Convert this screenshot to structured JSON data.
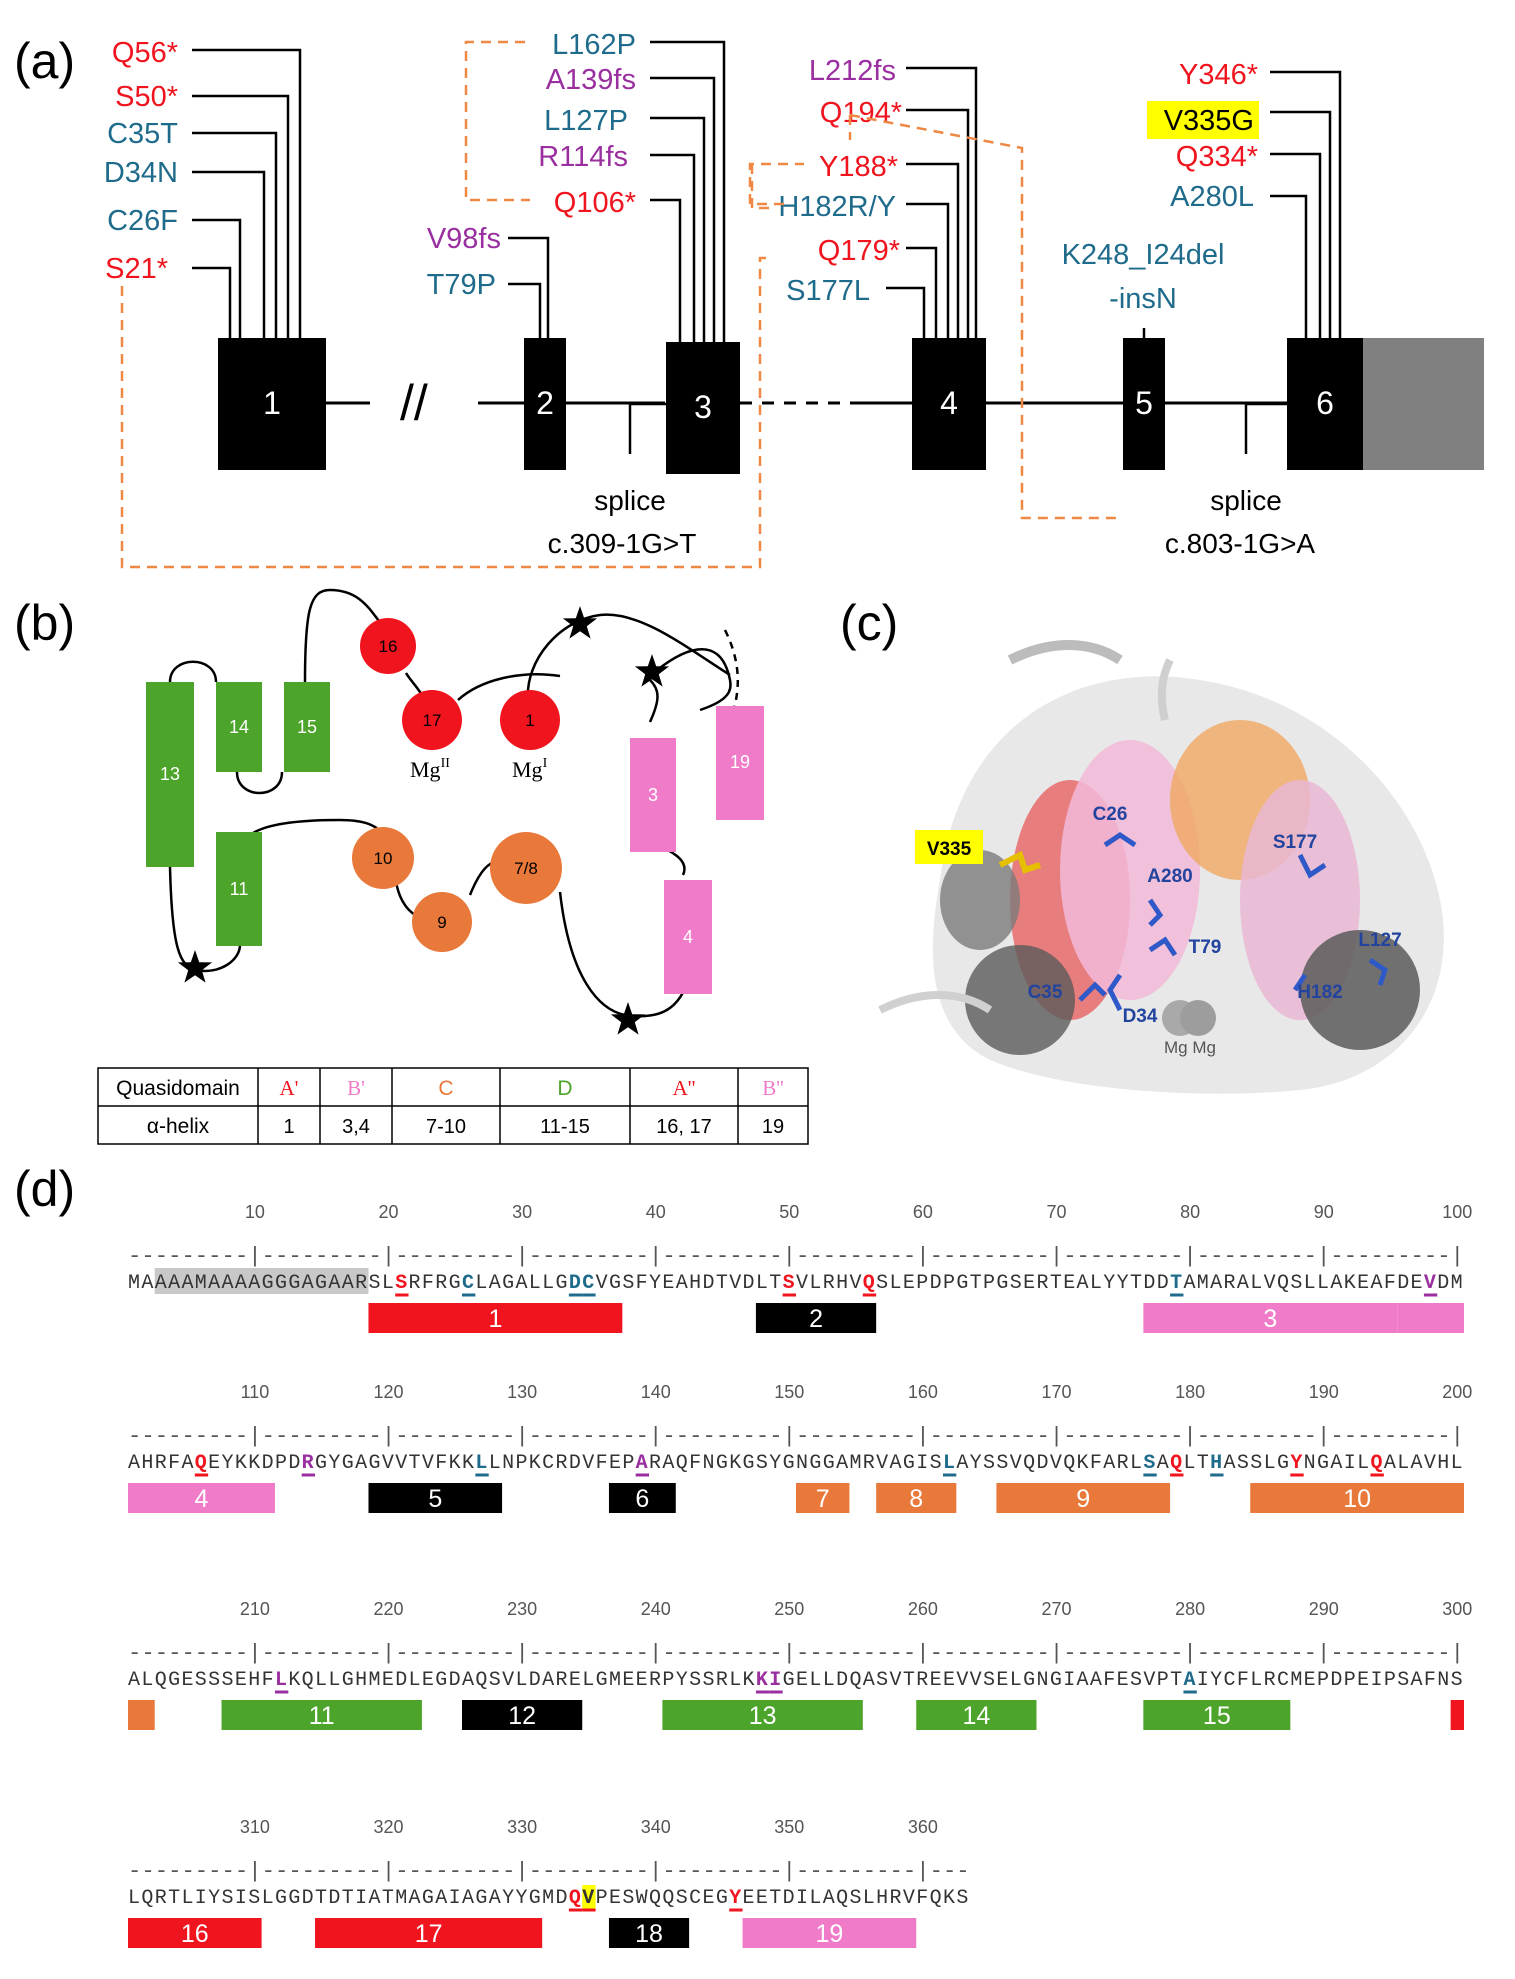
{
  "colors": {
    "red": "#f0141e",
    "teal": "#1f6b8c",
    "purple": "#9a2fa0",
    "black": "#000000",
    "orange_dash": "#ee8844",
    "green": "#4ca42a",
    "orange": "#e8793a",
    "pink": "#f07cc9",
    "gray": "#808080",
    "highlight": "#ffff00",
    "link_blue": "#1e73c8"
  },
  "panel_a": {
    "label": "(a)",
    "exons": [
      "1",
      "2",
      "3",
      "4",
      "5",
      "6"
    ],
    "break_mark": "//",
    "splice_left": {
      "line1": "splice",
      "line2": "c.309-1G>T"
    },
    "splice_right": {
      "line1": "splice",
      "line2": "c.803-1G>A"
    },
    "exon1_variants": [
      {
        "text": "Q56*",
        "color": "red"
      },
      {
        "text": "S50*",
        "color": "red"
      },
      {
        "text": "C35T",
        "color": "teal"
      },
      {
        "text": "D34N",
        "color": "teal"
      },
      {
        "text": "C26F",
        "color": "teal"
      },
      {
        "text": "S21*",
        "color": "red"
      }
    ],
    "exon2_variants": [
      {
        "text": "V98fs",
        "color": "purple"
      },
      {
        "text": "T79P",
        "color": "teal"
      }
    ],
    "exon3_variants": [
      {
        "text": "L162P",
        "color": "teal"
      },
      {
        "text": "A139fs",
        "color": "purple"
      },
      {
        "text": "L127P",
        "color": "teal"
      },
      {
        "text": "R114fs",
        "color": "purple"
      },
      {
        "text": "Q106*",
        "color": "red"
      }
    ],
    "exon4_variants": [
      {
        "text": "L212fs",
        "color": "purple"
      },
      {
        "text": "Q194*",
        "color": "red"
      },
      {
        "text": "Y188*",
        "color": "red"
      },
      {
        "text": "H182R/Y",
        "color": "teal"
      },
      {
        "text": "Q179*",
        "color": "red"
      },
      {
        "text": "S177L",
        "color": "teal"
      }
    ],
    "exon5_variant": {
      "line1": "K248_I24del",
      "line2": "-insN"
    },
    "exon6_variants": [
      {
        "text": "Y346*",
        "color": "red"
      },
      {
        "text": "V335G",
        "color": "black",
        "highlight": true
      },
      {
        "text": "Q334*",
        "color": "red"
      },
      {
        "text": "A280L",
        "color": "teal"
      }
    ]
  },
  "panel_b": {
    "label": "(b)",
    "helices": [
      "13",
      "14",
      "15",
      "11",
      "3",
      "19",
      "4"
    ],
    "circles": [
      "16",
      "17",
      "1",
      "10",
      "9",
      "7/8"
    ],
    "mg2": "Mg",
    "mg2_sup": "II",
    "mg1": "Mg",
    "mg1_sup": "I",
    "table": {
      "row_header_1": "Quasidomain",
      "row_header_2": "α-helix",
      "columns": [
        {
          "domain": "A'",
          "helix": "1",
          "color": "red"
        },
        {
          "domain": "B'",
          "helix": "3,4",
          "color": "pink"
        },
        {
          "domain": "C",
          "helix": "7-10",
          "color": "orange"
        },
        {
          "domain": "D",
          "helix": "11-15",
          "color": "green"
        },
        {
          "domain": "A''",
          "helix": "16, 17",
          "color": "red"
        },
        {
          "domain": "B''",
          "helix": "19",
          "color": "pink"
        }
      ]
    }
  },
  "panel_c": {
    "label": "(c)",
    "residue_labels": [
      "V335",
      "C26",
      "A280",
      "S177",
      "T79",
      "L127",
      "C35",
      "D34",
      "H182"
    ],
    "mg_label": "Mg Mg"
  },
  "panel_d": {
    "label": "(d)",
    "rows": [
      {
        "ticks": [
          "10",
          "20",
          "30",
          "40",
          "50",
          "60",
          "70",
          "80",
          "90",
          "100"
        ],
        "ruler": "---------|---------|---------|---------|---------|---------|---------|---------|---------|---------|",
        "seq": "MAAAAMAAAAGGGAGAARSLSRFRGCLAGALLGDCVGSFYEAHDTVDLTSVLRHVQSLEPDPGTPGSERTEALYYTDDTAMARALVQSLLAKEAFDEVDM",
        "bars": [
          {
            "label": "1",
            "color": "red",
            "start": 19,
            "end": 37
          },
          {
            "label": "2",
            "color": "black",
            "start": 48,
            "end": 56
          },
          {
            "label": "3",
            "color": "pink",
            "start": 77,
            "end": 95
          },
          {
            "label": "",
            "color": "pink",
            "start": 96,
            "end": 100
          }
        ]
      },
      {
        "ticks": [
          "110",
          "120",
          "130",
          "140",
          "150",
          "160",
          "170",
          "180",
          "190",
          "200"
        ],
        "ruler": "---------|---------|---------|---------|---------|---------|---------|---------|---------|---------|",
        "seq": "AHRFAQEYKKDPDRGYGAGVVTVFKKLLNPKCRDVFEPARAQFNGKGSYGNGGAMRVAGISLAYSSVQDVQKFARLSAQLTHASSLGYNGAILQALAVHL",
        "bars": [
          {
            "label": "4",
            "color": "pink",
            "start": 101,
            "end": 111
          },
          {
            "label": "5",
            "color": "black",
            "start": 119,
            "end": 128
          },
          {
            "label": "6",
            "color": "black",
            "start": 137,
            "end": 141
          },
          {
            "label": "7",
            "color": "orange",
            "start": 151,
            "end": 154
          },
          {
            "label": "8",
            "color": "orange",
            "start": 157,
            "end": 162
          },
          {
            "label": "9",
            "color": "orange",
            "start": 166,
            "end": 178
          },
          {
            "label": "10",
            "color": "orange",
            "start": 185,
            "end": 200
          }
        ]
      },
      {
        "ticks": [
          "210",
          "220",
          "230",
          "240",
          "250",
          "260",
          "270",
          "280",
          "290",
          "300"
        ],
        "ruler": "---------|---------|---------|---------|---------|---------|---------|---------|---------|---------|",
        "seq": "ALQGESSSEHFLKQLLGHMEDLEGDAQSVLDARELGMEERPYSSRLKKIGELLDQASVTREEVVSELGNGIAAFESVPTAIYCFLRCMEPDPEIPSAFNS",
        "bars": [
          {
            "label": "",
            "color": "orange",
            "start": 201,
            "end": 202
          },
          {
            "label": "11",
            "color": "green",
            "start": 208,
            "end": 222
          },
          {
            "label": "12",
            "color": "black",
            "start": 226,
            "end": 234
          },
          {
            "label": "13",
            "color": "green",
            "start": 241,
            "end": 255
          },
          {
            "label": "14",
            "color": "green",
            "start": 260,
            "end": 268
          },
          {
            "label": "15",
            "color": "green",
            "start": 277,
            "end": 287
          },
          {
            "label": "",
            "color": "red",
            "start": 300,
            "end": 300
          }
        ]
      },
      {
        "ticks": [
          "310",
          "320",
          "330",
          "340",
          "350",
          "360"
        ],
        "ruler": "---------|---------|---------|---------|---------|---------|---",
        "seq": "LQRTLIYSISLGGDTDTIATMAGAIAGAYYGMDQVPESWQQSCEGYEETDILAQSLHRVFQKS",
        "bars": [
          {
            "label": "16",
            "color": "red",
            "start": 301,
            "end": 310
          },
          {
            "label": "17",
            "color": "red",
            "start": 315,
            "end": 331
          },
          {
            "label": "18",
            "color": "black",
            "start": 337,
            "end": 342
          },
          {
            "label": "19",
            "color": "pink",
            "start": 347,
            "end": 359
          }
        ]
      }
    ],
    "marks": [
      {
        "pos": 21,
        "color": "red"
      },
      {
        "pos": 26,
        "color": "teal"
      },
      {
        "pos": 34,
        "color": "teal"
      },
      {
        "pos": 35,
        "color": "teal"
      },
      {
        "pos": 50,
        "color": "red"
      },
      {
        "pos": 56,
        "color": "red"
      },
      {
        "pos": 79,
        "color": "teal"
      },
      {
        "pos": 98,
        "color": "purple"
      },
      {
        "pos": 106,
        "color": "red"
      },
      {
        "pos": 114,
        "color": "purple"
      },
      {
        "pos": 127,
        "color": "teal"
      },
      {
        "pos": 139,
        "color": "purple"
      },
      {
        "pos": 162,
        "color": "teal"
      },
      {
        "pos": 177,
        "color": "teal"
      },
      {
        "pos": 179,
        "color": "red"
      },
      {
        "pos": 182,
        "color": "teal"
      },
      {
        "pos": 188,
        "color": "red"
      },
      {
        "pos": 194,
        "color": "red"
      },
      {
        "pos": 212,
        "color": "purple"
      },
      {
        "pos": 248,
        "color": "purple"
      },
      {
        "pos": 249,
        "color": "purple"
      },
      {
        "pos": 280,
        "color": "teal"
      },
      {
        "pos": 334,
        "color": "red"
      },
      {
        "pos": 335,
        "color": "highlight"
      },
      {
        "pos": 346,
        "color": "red"
      }
    ],
    "gray_highlight": {
      "start": 3,
      "end": 18
    }
  }
}
